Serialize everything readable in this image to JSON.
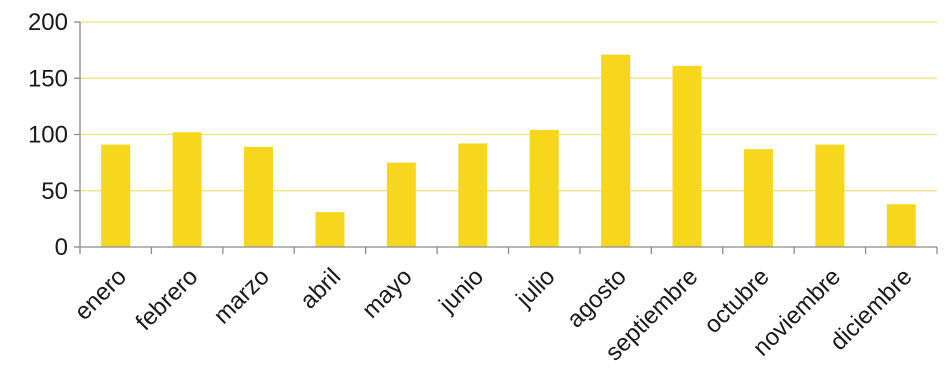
{
  "chart_data": {
    "type": "bar",
    "title": "",
    "xlabel": "",
    "ylabel": "",
    "categories": [
      "enero",
      "febrero",
      "marzo",
      "abril",
      "mayo",
      "junio",
      "julio",
      "agosto",
      "septiembre",
      "octubre",
      "noviembre",
      "diciembre"
    ],
    "values": [
      91,
      102,
      89,
      31,
      75,
      92,
      104,
      171,
      161,
      87,
      91,
      38
    ],
    "ylim": [
      0,
      200
    ],
    "yticks": [
      "0",
      "50",
      "100",
      "150",
      "200"
    ],
    "grid": true,
    "legend": "none",
    "colors": {
      "bar": "#F7D71E",
      "grid": "#F2E27A",
      "axis": "#8C8C8C",
      "text": "#1A1A1A"
    }
  }
}
